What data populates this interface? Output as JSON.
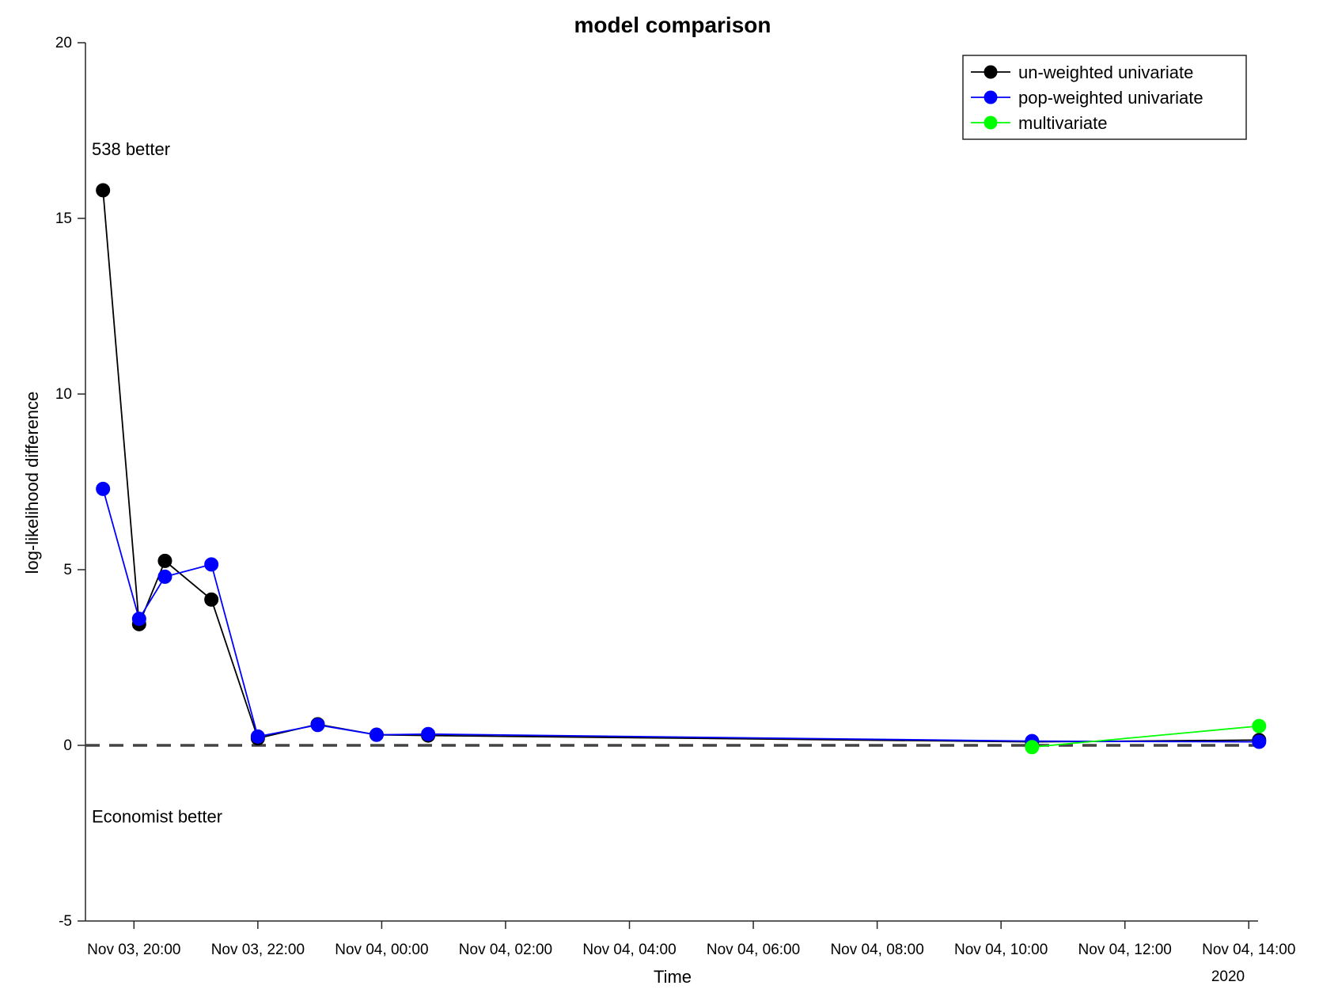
{
  "chart_data": {
    "type": "line",
    "title": "model comparison",
    "xlabel": "Time",
    "ylabel": "log-likelihood difference",
    "x_unit": "hour",
    "x_start": "Nov 03, 19:13",
    "x_end": "Nov 04, 14:09",
    "xlim": [
      "Nov 03, 19:13",
      "Nov 04, 14:09"
    ],
    "x_ticks": [
      "Nov 03, 20:00",
      "Nov 03, 22:00",
      "Nov 04, 00:00",
      "Nov 04, 02:00",
      "Nov 04, 04:00",
      "Nov 04, 06:00",
      "Nov 04, 08:00",
      "Nov 04, 10:00",
      "Nov 04, 12:00",
      "Nov 04, 14:00"
    ],
    "x_ticks_hours": [
      0.78,
      2.78,
      4.78,
      6.78,
      8.78,
      10.78,
      12.78,
      14.78,
      16.78,
      18.78
    ],
    "x_secondary_label": "2020",
    "ylim": [
      -5,
      20
    ],
    "y_ticks": [
      -5,
      0,
      5,
      10,
      15,
      20
    ],
    "grid": false,
    "legend_position": "top-right",
    "reference_line": {
      "y": 0,
      "style": "dashed",
      "color": "#444444"
    },
    "annotations": [
      {
        "text": "538 better",
        "x": "Nov 03, 19:13",
        "y": 16.8
      },
      {
        "text": "Economist better",
        "x": "Nov 03, 19:13",
        "y": -2.2
      }
    ],
    "series": [
      {
        "name": "un-weighted univariate",
        "color": "#000000",
        "points": [
          {
            "x": "Nov 03, 19:30",
            "y": 15.8
          },
          {
            "x": "Nov 03, 20:05",
            "y": 3.45
          },
          {
            "x": "Nov 03, 20:30",
            "y": 5.25
          },
          {
            "x": "Nov 03, 21:15",
            "y": 4.15
          },
          {
            "x": "Nov 03, 22:00",
            "y": 0.2
          },
          {
            "x": "Nov 03, 22:58",
            "y": 0.6
          },
          {
            "x": "Nov 03, 23:55",
            "y": 0.3
          },
          {
            "x": "Nov 04, 00:45",
            "y": 0.28
          },
          {
            "x": "Nov 04, 10:30",
            "y": 0.1
          },
          {
            "x": "Nov 04, 14:10",
            "y": 0.15
          }
        ]
      },
      {
        "name": "pop-weighted univariate",
        "color": "#0000ff",
        "points": [
          {
            "x": "Nov 03, 19:30",
            "y": 7.3
          },
          {
            "x": "Nov 03, 20:05",
            "y": 3.6
          },
          {
            "x": "Nov 03, 20:30",
            "y": 4.8
          },
          {
            "x": "Nov 03, 21:15",
            "y": 5.15
          },
          {
            "x": "Nov 03, 22:00",
            "y": 0.25
          },
          {
            "x": "Nov 03, 22:58",
            "y": 0.58
          },
          {
            "x": "Nov 03, 23:55",
            "y": 0.3
          },
          {
            "x": "Nov 04, 00:45",
            "y": 0.32
          },
          {
            "x": "Nov 04, 10:30",
            "y": 0.12
          },
          {
            "x": "Nov 04, 14:10",
            "y": 0.1
          }
        ]
      },
      {
        "name": "multivariate",
        "color": "#00ff00",
        "points": [
          {
            "x": "Nov 04, 10:30",
            "y": -0.05
          },
          {
            "x": "Nov 04, 14:10",
            "y": 0.55
          }
        ]
      }
    ]
  }
}
